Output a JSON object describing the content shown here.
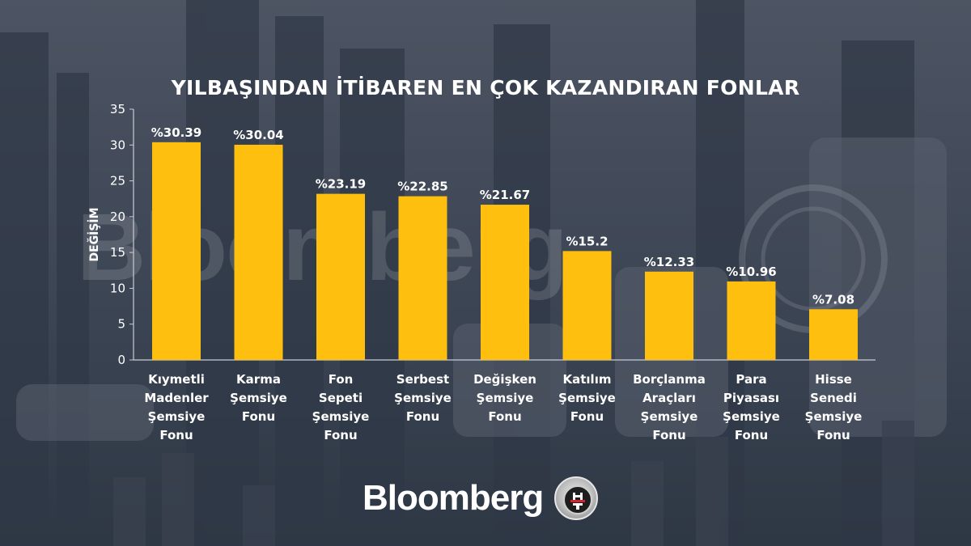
{
  "title": "YILBAŞINDAN İTİBAREN EN ÇOK KAZANDIRAN FONLAR",
  "brand": {
    "name": "Bloomberg",
    "badge_letters": "HT"
  },
  "colors": {
    "bar": "#ffbf0f",
    "text": "#ffffff",
    "axis": "#c7ccd6"
  },
  "chart_data": {
    "type": "bar",
    "title": "YILBAŞINDAN İTİBAREN EN ÇOK KAZANDIRAN FONLAR",
    "ylabel": "DEĞİŞİM",
    "xlabel": "",
    "ylim": [
      0,
      35
    ],
    "yticks": [
      0,
      5,
      10,
      15,
      20,
      25,
      30,
      35
    ],
    "grid": false,
    "categories": [
      [
        "Kıymetli",
        "Madenler",
        "Şemsiye",
        "Fonu"
      ],
      [
        "Karma",
        "Şemsiye",
        "Fonu"
      ],
      [
        "Fon",
        "Sepeti",
        "Şemsiye",
        "Fonu"
      ],
      [
        "Serbest",
        "Şemsiye",
        "Fonu"
      ],
      [
        "Değişken",
        "Şemsiye",
        "Fonu"
      ],
      [
        "Katılım",
        "Şemsiye",
        "Fonu"
      ],
      [
        "Borçlanma",
        "Araçları",
        "Şemsiye",
        "Fonu"
      ],
      [
        "Para",
        "Piyasası",
        "Şemsiye",
        "Fonu"
      ],
      [
        "Hisse",
        "Senedi",
        "Şemsiye",
        "Fonu"
      ]
    ],
    "values": [
      30.39,
      30.04,
      23.19,
      22.85,
      21.67,
      15.2,
      12.33,
      10.96,
      7.08
    ],
    "data_labels": [
      "%30.39",
      "%30.04",
      "%23.19",
      "%22.85",
      "%21.67",
      "%15.2",
      "%12.33",
      "%10.96",
      "%7.08"
    ]
  }
}
